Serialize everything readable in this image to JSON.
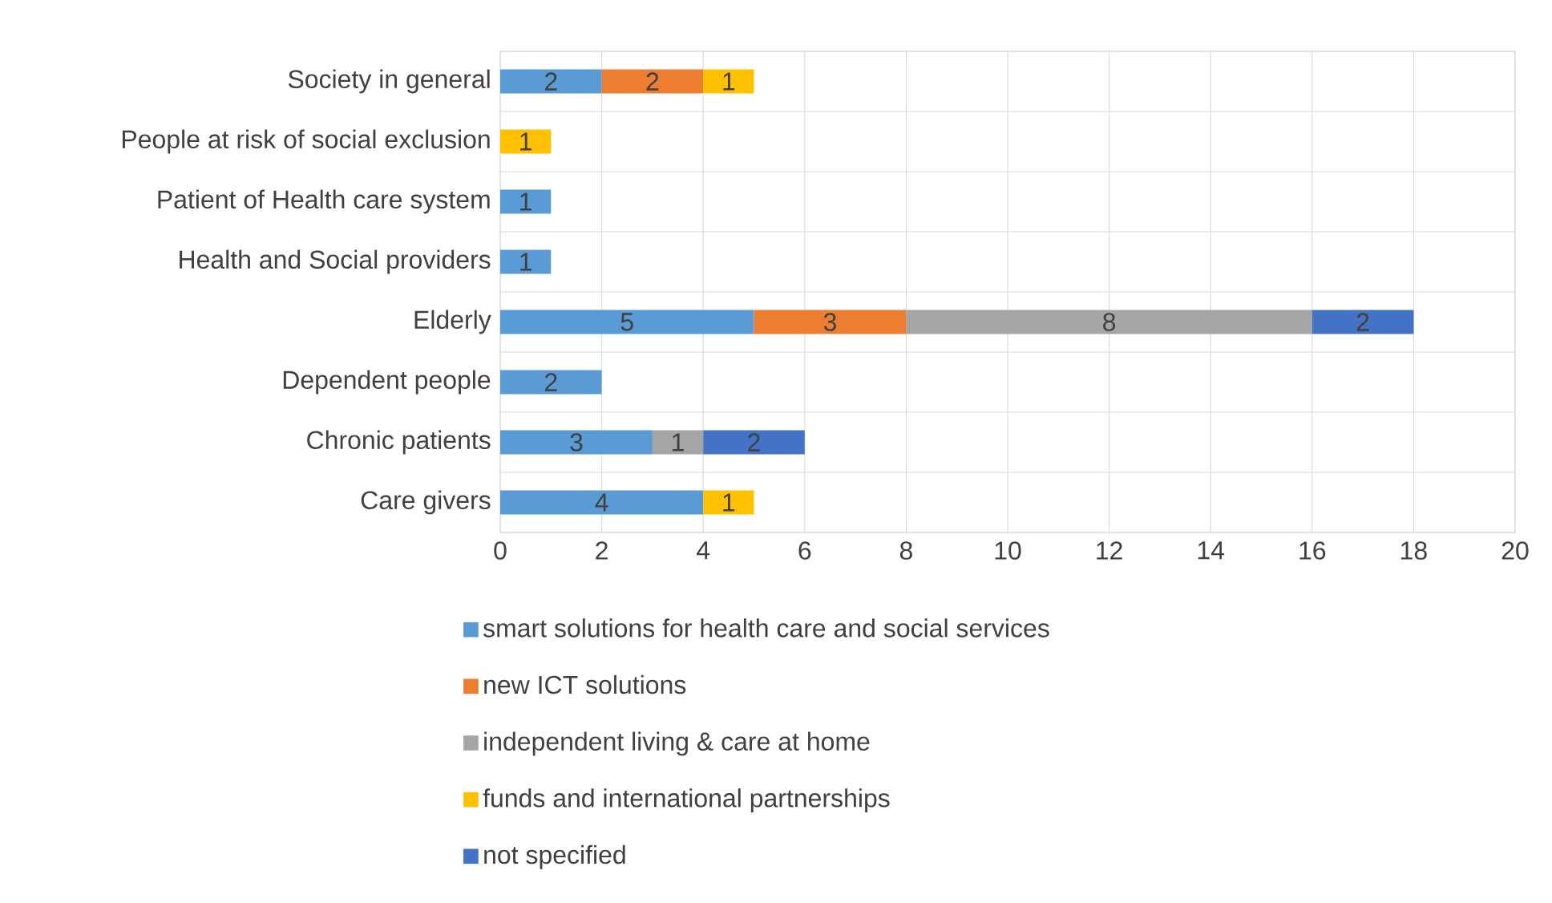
{
  "chart_data": {
    "type": "bar",
    "orientation": "horizontal",
    "stacked": true,
    "categories": [
      "Society in general",
      "People at risk of social exclusion",
      "Patient of Health care system",
      "Health and Social providers",
      "Elderly",
      "Dependent people",
      "Chronic patients",
      "Care givers"
    ],
    "series": [
      {
        "name": "smart solutions for health care and social services",
        "color": "#5b9bd5",
        "values": [
          2,
          null,
          1,
          1,
          5,
          2,
          3,
          4
        ]
      },
      {
        "name": "new ICT solutions",
        "color": "#ed7d31",
        "values": [
          2,
          null,
          null,
          null,
          3,
          null,
          null,
          null
        ]
      },
      {
        "name": "independent living & care at home",
        "color": "#a5a5a5",
        "values": [
          null,
          null,
          null,
          null,
          8,
          null,
          1,
          null
        ]
      },
      {
        "name": "funds and international partnerships",
        "color": "#ffc000",
        "values": [
          1,
          1,
          null,
          null,
          null,
          null,
          null,
          1
        ]
      },
      {
        "name": "not specified",
        "color": "#4472c4",
        "values": [
          null,
          null,
          null,
          null,
          2,
          null,
          2,
          null
        ]
      }
    ],
    "xlim": [
      0,
      20
    ],
    "xticks": [
      0,
      2,
      4,
      6,
      8,
      10,
      12,
      14,
      16,
      18,
      20
    ],
    "grid": true,
    "legend": "bottom",
    "data_labels": true
  }
}
